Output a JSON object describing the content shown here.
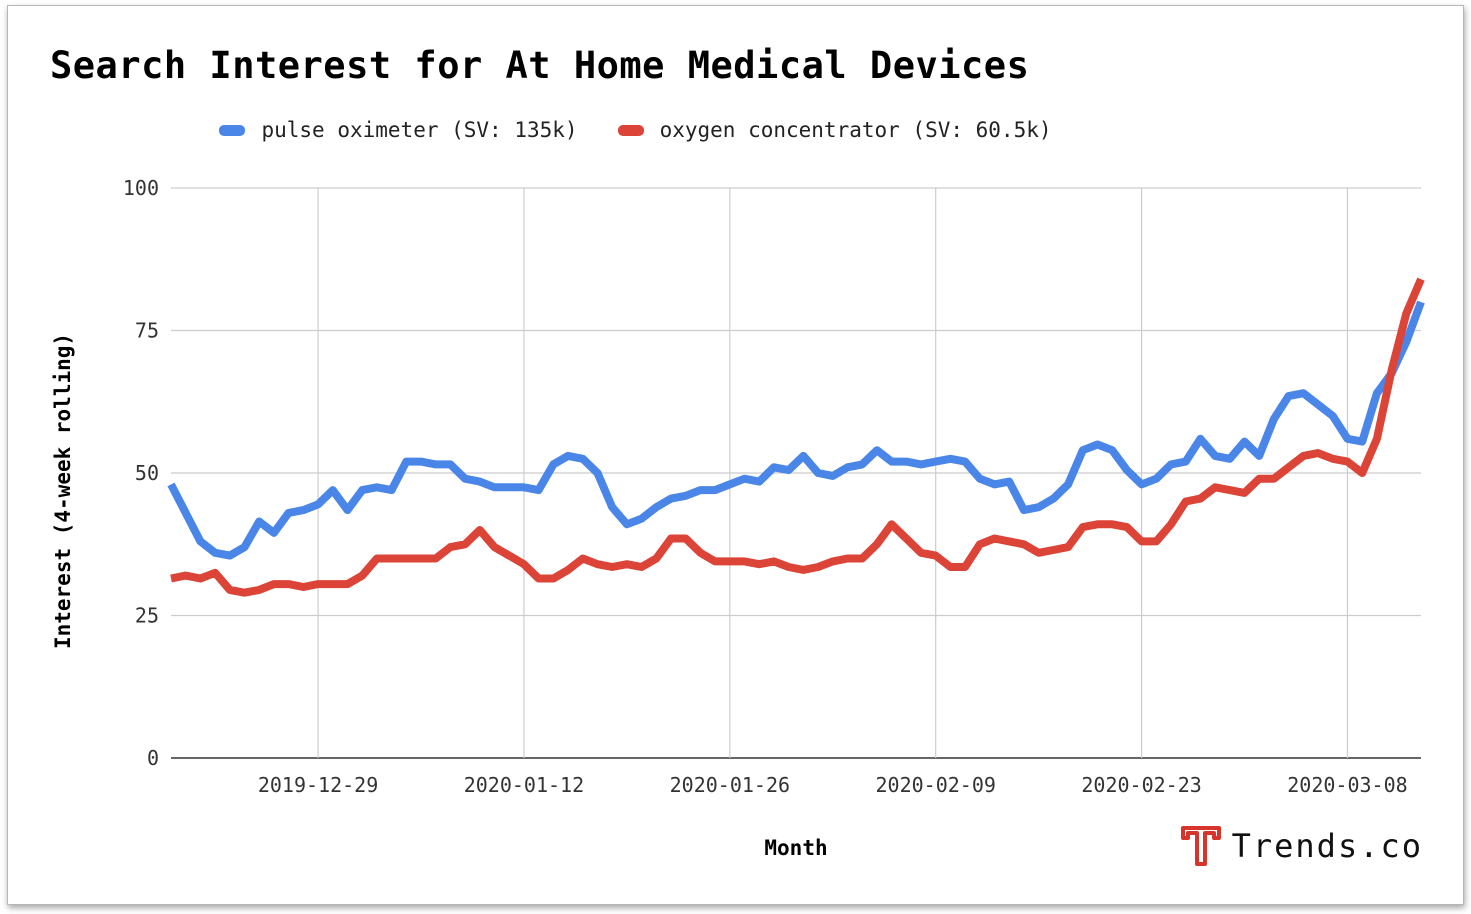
{
  "brand": {
    "name": "Trends.co",
    "logo_color": "#d9342b"
  },
  "chart_data": {
    "type": "line",
    "title": "Search Interest for At Home Medical Devices",
    "xlabel": "Month",
    "ylabel": "Interest (4-week rolling)",
    "ylim": [
      0,
      100
    ],
    "yticks": [
      "0",
      "25",
      "50",
      "75",
      "100"
    ],
    "xticks": [
      {
        "label": "2019-12-29",
        "index": 10
      },
      {
        "label": "2020-01-12",
        "index": 24
      },
      {
        "label": "2020-01-26",
        "index": 38
      },
      {
        "label": "2020-02-09",
        "index": 52
      },
      {
        "label": "2020-02-23",
        "index": 66
      },
      {
        "label": "2020-03-08",
        "index": 80
      }
    ],
    "grid": true,
    "legend_position": "top",
    "series": [
      {
        "name": "pulse oximeter (SV: 135k)",
        "color": "#4a86e8",
        "values": [
          48,
          43,
          38,
          36,
          35.5,
          37,
          41.5,
          39.5,
          43,
          43.5,
          44.5,
          47,
          43.5,
          47,
          47.5,
          47,
          52,
          52,
          51.5,
          51.5,
          49,
          48.5,
          47.5,
          47.5,
          47.5,
          47,
          51.5,
          53,
          52.5,
          50,
          44,
          41,
          42,
          44,
          45.5,
          46,
          47,
          47,
          48,
          49,
          48.5,
          51,
          50.5,
          53,
          50,
          49.5,
          51,
          51.5,
          54,
          52,
          52,
          51.5,
          52,
          52.5,
          52,
          49,
          48,
          48.5,
          43.5,
          44,
          45.5,
          48,
          54,
          55,
          54,
          50.5,
          48,
          49,
          51.5,
          52,
          56,
          53,
          52.5,
          55.5,
          53,
          59.5,
          63.5,
          64,
          62,
          60,
          56,
          55.5,
          64,
          67.5,
          73,
          80
        ]
      },
      {
        "name": "oxygen concentrator (SV: 60.5k)",
        "color": "#db4437",
        "values": [
          31.5,
          32,
          31.5,
          32.5,
          29.5,
          29,
          29.5,
          30.5,
          30.5,
          30,
          30.5,
          30.5,
          30.5,
          32,
          35,
          35,
          35,
          35,
          35,
          37,
          37.5,
          40,
          37,
          35.5,
          34,
          31.5,
          31.5,
          33,
          35,
          34,
          33.5,
          34,
          33.5,
          35,
          38.5,
          38.5,
          36,
          34.5,
          34.5,
          34.5,
          34,
          34.5,
          33.5,
          33,
          33.5,
          34.5,
          35,
          35,
          37.5,
          41,
          38.5,
          36,
          35.5,
          33.5,
          33.5,
          37.5,
          38.5,
          38,
          37.5,
          36,
          36.5,
          37,
          40.5,
          41,
          41,
          40.5,
          38,
          38,
          41,
          45,
          45.5,
          47.5,
          47,
          46.5,
          49,
          49,
          51,
          53,
          53.5,
          52.5,
          52,
          50,
          56,
          68,
          78,
          84
        ]
      }
    ]
  }
}
